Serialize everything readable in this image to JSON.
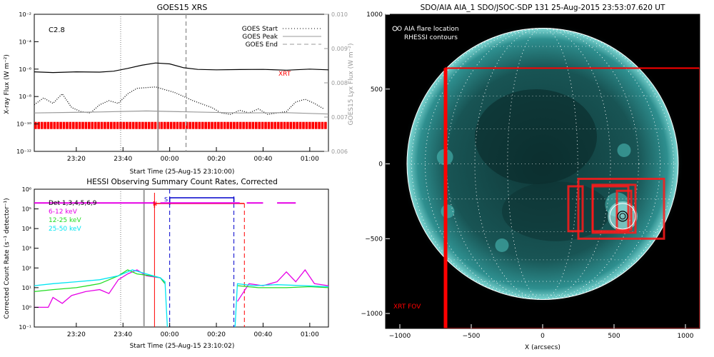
{
  "colors": {
    "red": "#ff0000",
    "magenta": "#e600e6",
    "green": "#22dd22",
    "cyan": "#00e5f2",
    "blue": "#0000cc",
    "gray": "#999999",
    "dark": "#000000"
  },
  "chart_data": [
    {
      "type": "line",
      "title": "GOES15 XRS",
      "xlabel": "Start Time (25-Aug-15 23:10:00)",
      "ylabel": "X-ray Flux (W m⁻²)",
      "ylabel_right": "GOES15 Lyx Flux (W m⁻²)",
      "x_ticks": [
        "23:20",
        "23:40",
        "00:00",
        "00:20",
        "00:40",
        "01:00"
      ],
      "x_tick_minutes": [
        10,
        30,
        50,
        70,
        90,
        110
      ],
      "xlim_minutes": [
        -8,
        118
      ],
      "y_ticks": [
        "10⁻²",
        "10⁻⁴",
        "10⁻⁶",
        "10⁻⁸",
        "10⁻¹⁰",
        "10⁻¹²"
      ],
      "ylim_log10": [
        -12,
        -2
      ],
      "y_ticks_right": [
        "0.010",
        "0.009",
        "0.008",
        "0.007",
        "0.006"
      ],
      "ylim_right": [
        0.006,
        0.01
      ],
      "class_label": "C2.8",
      "instrument_label": "XRT",
      "legend": [
        "GOES Start",
        "GOES Peak",
        "GOES End"
      ],
      "markers": {
        "start": 29,
        "peak": 45,
        "end": 57
      },
      "series": [
        {
          "style": "solid",
          "color": "#000000",
          "points": [
            [
              -8,
              -6.2
            ],
            [
              0,
              -6.25
            ],
            [
              10,
              -6.2
            ],
            [
              20,
              -6.22
            ],
            [
              26,
              -6.15
            ],
            [
              32,
              -5.95
            ],
            [
              38,
              -5.72
            ],
            [
              44,
              -5.55
            ],
            [
              50,
              -5.62
            ],
            [
              56,
              -5.9
            ],
            [
              62,
              -6.02
            ],
            [
              70,
              -6.05
            ],
            [
              80,
              -6.03
            ],
            [
              90,
              -6.02
            ],
            [
              100,
              -6.08
            ],
            [
              110,
              -6.0
            ],
            [
              118,
              -6.05
            ]
          ]
        },
        {
          "style": "dotted",
          "color": "#000000",
          "points": [
            [
              -8,
              -8.6
            ],
            [
              -4,
              -8.1
            ],
            [
              0,
              -8.5
            ],
            [
              4,
              -7.8
            ],
            [
              8,
              -8.8
            ],
            [
              12,
              -9.1
            ],
            [
              16,
              -9.2
            ],
            [
              20,
              -8.6
            ],
            [
              24,
              -8.3
            ],
            [
              28,
              -8.5
            ],
            [
              32,
              -7.8
            ],
            [
              36,
              -7.4
            ],
            [
              40,
              -7.35
            ],
            [
              44,
              -7.3
            ],
            [
              48,
              -7.5
            ],
            [
              52,
              -7.7
            ],
            [
              56,
              -8.0
            ],
            [
              60,
              -8.3
            ],
            [
              64,
              -8.55
            ],
            [
              68,
              -8.8
            ],
            [
              72,
              -9.2
            ],
            [
              76,
              -9.3
            ],
            [
              80,
              -9.0
            ],
            [
              84,
              -9.2
            ],
            [
              88,
              -8.9
            ],
            [
              92,
              -9.3
            ],
            [
              96,
              -9.2
            ],
            [
              100,
              -9.1
            ],
            [
              104,
              -8.4
            ],
            [
              108,
              -8.2
            ],
            [
              112,
              -8.5
            ],
            [
              116,
              -8.9
            ]
          ]
        },
        {
          "style": "solid",
          "color": "#999999",
          "axis": "right",
          "points": [
            [
              -8,
              0.00712
            ],
            [
              20,
              0.00715
            ],
            [
              40,
              0.00718
            ],
            [
              60,
              0.00715
            ],
            [
              80,
              0.00712
            ],
            [
              100,
              0.00713
            ],
            [
              118,
              0.00709
            ]
          ]
        }
      ]
    },
    {
      "type": "line",
      "title": "HESSI Observing Summary Count Rates, Corrected",
      "xlabel": "Start Time (25-Aug-15 23:10:02)",
      "ylabel": "Corrected Count Rate (s⁻¹ detector⁻¹)",
      "x_ticks": [
        "23:20",
        "23:40",
        "00:00",
        "00:20",
        "00:40",
        "01:00"
      ],
      "x_tick_minutes": [
        10,
        30,
        50,
        70,
        90,
        110
      ],
      "xlim_minutes": [
        -8,
        118
      ],
      "y_ticks": [
        "10⁶",
        "10⁵",
        "10⁴",
        "10³",
        "10²",
        "10¹",
        "10⁰",
        "10⁻¹"
      ],
      "ylim_log10": [
        -1,
        6
      ],
      "legend": [
        "Det 1,3,4,5,6,9",
        "6-12 keV",
        "12-25 keV",
        "25-50 keV"
      ],
      "flags": {
        "N": "N",
        "S": "S"
      },
      "series": [
        {
          "name": "6-12 keV",
          "color": "#e600e6",
          "points": [
            [
              -8,
              0.0
            ],
            [
              -2,
              0.0
            ],
            [
              0,
              0.5
            ],
            [
              4,
              0.2
            ],
            [
              8,
              0.6
            ],
            [
              14,
              0.8
            ],
            [
              20,
              0.9
            ],
            [
              24,
              0.7
            ],
            [
              28,
              1.4
            ],
            [
              32,
              1.7
            ],
            [
              36,
              1.9
            ],
            [
              40,
              1.6
            ],
            [
              46,
              1.5
            ],
            [
              48,
              1.2
            ],
            [
              null,
              null
            ],
            [
              79,
              0.3
            ],
            [
              84,
              1.2
            ],
            [
              90,
              1.1
            ],
            [
              96,
              1.3
            ],
            [
              100,
              1.8
            ],
            [
              104,
              1.3
            ],
            [
              108,
              1.9
            ],
            [
              112,
              1.2
            ],
            [
              118,
              1.1
            ]
          ]
        },
        {
          "name": "12-25 keV",
          "color": "#22dd22",
          "points": [
            [
              -8,
              0.8
            ],
            [
              0,
              0.9
            ],
            [
              10,
              1.0
            ],
            [
              20,
              1.2
            ],
            [
              28,
              1.6
            ],
            [
              32,
              1.9
            ],
            [
              36,
              1.7
            ],
            [
              42,
              1.6
            ],
            [
              46,
              1.5
            ],
            [
              48,
              1.2
            ],
            [
              null,
              null
            ],
            [
              79,
              1.1
            ],
            [
              88,
              1.0
            ],
            [
              100,
              1.0
            ],
            [
              110,
              1.05
            ],
            [
              118,
              1.0
            ]
          ]
        },
        {
          "name": "25-50 keV",
          "color": "#00e5f2",
          "points": [
            [
              -8,
              1.1
            ],
            [
              0,
              1.2
            ],
            [
              10,
              1.3
            ],
            [
              20,
              1.4
            ],
            [
              28,
              1.6
            ],
            [
              34,
              1.9
            ],
            [
              40,
              1.7
            ],
            [
              46,
              1.5
            ],
            [
              48,
              1.3
            ],
            [
              49,
              -1.0
            ],
            [
              null,
              null
            ],
            [
              78,
              -1.0
            ],
            [
              79,
              1.2
            ],
            [
              86,
              1.1
            ],
            [
              96,
              1.15
            ],
            [
              108,
              1.1
            ],
            [
              118,
              1.05
            ]
          ]
        }
      ],
      "attenuator_bars": {
        "det_level": 5.3,
        "segments": [
          [
            -8,
            44
          ],
          [
            46,
            80
          ],
          [
            83,
            90
          ],
          [
            96,
            104
          ]
        ]
      },
      "markers": {
        "start_dotted": 29,
        "gray": 39,
        "red": 43.5,
        "blue": 50,
        "blue_end": 77.5,
        "red_end": 82
      }
    },
    {
      "type": "image",
      "title": "SDO/AIA AIA_1 SDO/JSOC-SDP 131 25-Aug-2015 23:53:07.620 UT",
      "xlabel": "X (arcsecs)",
      "x_ticks": [
        "−1000",
        "−500",
        "0",
        "500",
        "1000"
      ],
      "x_tick_values": [
        -1000,
        -500,
        0,
        500,
        1000
      ],
      "y_ticks": [
        "1000",
        "500",
        "0",
        "−500",
        "−1000"
      ],
      "y_tick_values": [
        1000,
        500,
        0,
        -500,
        -1000
      ],
      "xlim": [
        -1100,
        1100
      ],
      "ylim": [
        -1100,
        1000
      ],
      "legend": [
        "O AIA flare location",
        "RHESSI contours"
      ],
      "fov_label": "XRT FOV",
      "flare_location": [
        560,
        -350
      ],
      "disk_radius_arcsec": 950,
      "xrt_fov": [
        -680,
        640,
        1100,
        -1100
      ],
      "red_boxes": [
        [
          250,
          -500,
          850,
          -100
        ],
        [
          350,
          -460,
          650,
          -140
        ],
        [
          350,
          -450,
          600,
          -150
        ],
        [
          180,
          -450,
          280,
          -150
        ],
        [
          520,
          -440,
          620,
          -180
        ]
      ]
    }
  ]
}
